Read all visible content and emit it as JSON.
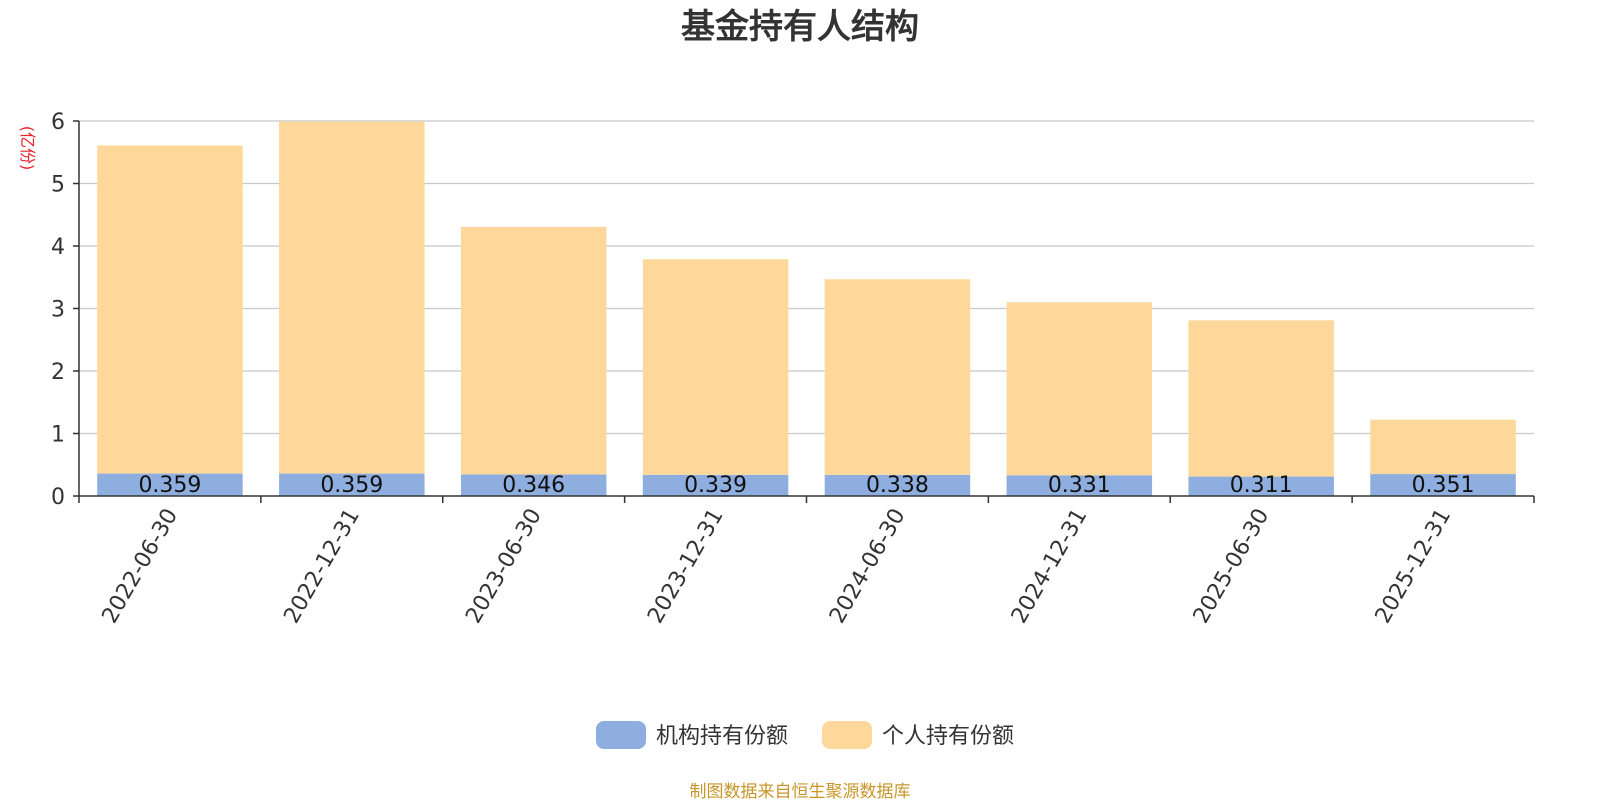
{
  "chart_data": {
    "type": "bar",
    "stacked": true,
    "title": "基金持有人结构",
    "unit_label": "(亿份)",
    "categories": [
      "2022-06-30",
      "2022-12-31",
      "2023-06-30",
      "2023-12-31",
      "2024-06-30",
      "2024-12-31",
      "2025-06-30",
      "2025-12-31"
    ],
    "series": [
      {
        "name": "机构持有份额",
        "color": "#8eaee0",
        "values": [
          0.359,
          0.359,
          0.346,
          0.339,
          0.338,
          0.331,
          0.311,
          0.351
        ],
        "labels": [
          "0.359",
          "0.359",
          "0.346",
          "0.339",
          "0.338",
          "0.331",
          "0.311",
          "0.351"
        ]
      },
      {
        "name": "个人持有份额",
        "color": "#fed89b",
        "values": [
          5.25,
          5.63,
          3.96,
          3.45,
          3.13,
          2.77,
          2.5,
          0.87
        ]
      }
    ],
    "ylim": [
      0,
      6
    ],
    "yticks": [
      "0",
      "1",
      "2",
      "3",
      "4",
      "5",
      "6"
    ],
    "grid": true,
    "legend_position": "bottom-center",
    "source_note": "制图数据来自恒生聚源数据库"
  }
}
